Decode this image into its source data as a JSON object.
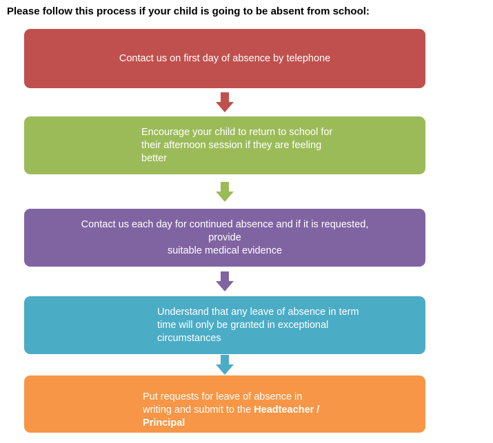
{
  "title": "Please follow this process if your child is going to be absent from school:",
  "colors": {
    "step_red": "#C0504D",
    "step_green": "#9BBB59",
    "step_purple": "#8064A2",
    "step_teal": "#4BACC6",
    "step_orange": "#F79646",
    "box_text": "#FFFFFF",
    "title_text": "#000000",
    "background": "#FFFFFF"
  },
  "flowchart": {
    "type": "vertical-process",
    "steps": [
      {
        "order": 1,
        "color": "#C0504D",
        "text": "Contact us on first day of absence by telephone"
      },
      {
        "order": 2,
        "color": "#9BBB59",
        "text": "Encourage your child to return to school for\ntheir afternoon session if they are feeling\nbetter"
      },
      {
        "order": 3,
        "color": "#8064A2",
        "text": "Contact us each day for continued absence and if it is requested,\nprovide\nsuitable medical evidence"
      },
      {
        "order": 4,
        "color": "#4BACC6",
        "text": "Understand that any leave of absence in term\ntime will only be granted in exceptional\ncircumstances"
      },
      {
        "order": 5,
        "color": "#F79646",
        "rich": [
          {
            "text": "Put requests for leave of absence in\nwriting and submit to the ",
            "bold": false
          },
          {
            "text": "Headteacher /\nPrincipal",
            "bold": true
          }
        ]
      }
    ]
  }
}
